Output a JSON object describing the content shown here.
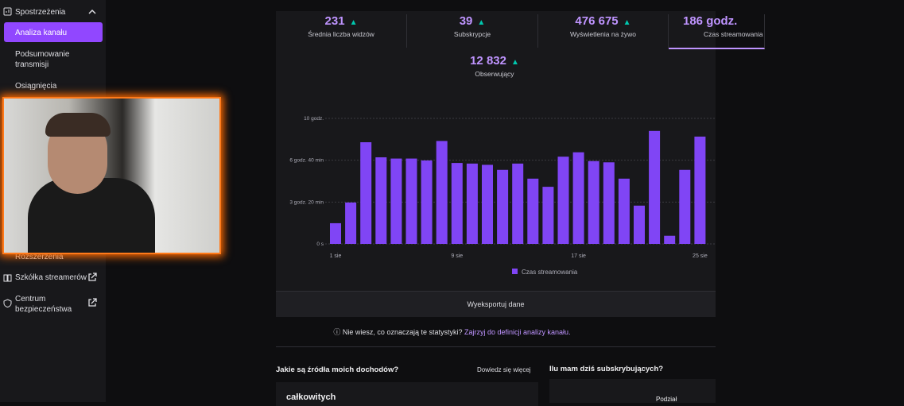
{
  "sidebar": {
    "section": "Spostrzeżenia",
    "items": [
      "Analiza kanału",
      "Podsumowanie transmisji",
      "Osiągnięcia",
      "Rozszerzenia",
      "Szkółka streamerów",
      "Centrum bezpieczeństwa"
    ]
  },
  "stats": [
    {
      "value": "231",
      "label": "Średnia liczba widzów"
    },
    {
      "value": "39",
      "label": "Subskrypcje"
    },
    {
      "value": "476 675",
      "label": "Wyświetlenia na żywo"
    },
    {
      "value": "186 godz.",
      "label": "Czas streamowania"
    },
    {
      "value": "12 832",
      "label": "Obserwujący"
    }
  ],
  "chart_data": {
    "type": "bar",
    "categories": [
      "1 sie",
      null,
      null,
      null,
      null,
      null,
      null,
      null,
      "9 sie",
      null,
      null,
      null,
      null,
      null,
      null,
      null,
      "17 sie",
      null,
      null,
      null,
      null,
      null,
      null,
      null,
      "25 sie"
    ],
    "series": [
      {
        "name": "Czas streamowania",
        "color": "#8045f5",
        "values": [
          1.65,
          3.3,
          8.1,
          6.9,
          6.8,
          6.8,
          6.65,
          8.2,
          6.45,
          6.4,
          6.3,
          5.9,
          6.4,
          5.2,
          4.55,
          6.95,
          7.3,
          6.6,
          6.5,
          5.2,
          3.05,
          9.0,
          0.65,
          5.9,
          8.55
        ]
      }
    ],
    "ylim": [
      0,
      10
    ],
    "yticks": [
      {
        "value": 0,
        "label": "0 s"
      },
      {
        "value": 3.3333,
        "label": "3 godz. 20 min"
      },
      {
        "value": 6.6667,
        "label": "6 godz. 40 min"
      },
      {
        "value": 10,
        "label": "10 godz."
      }
    ],
    "grid": true
  },
  "export_button": "Wyeksportuj dane",
  "help": {
    "question": "Nie wiesz, co oznaczają te statystyki?",
    "link": "Zajrzyj do definicji analizy kanału."
  },
  "sections": [
    {
      "title": "Jakie są źródła moich dochodów?",
      "link": "Dowiedz się więcej",
      "card": "całkowitych"
    },
    {
      "title": "Ilu mam dziś subskrybujących?",
      "card": "Podział"
    }
  ]
}
